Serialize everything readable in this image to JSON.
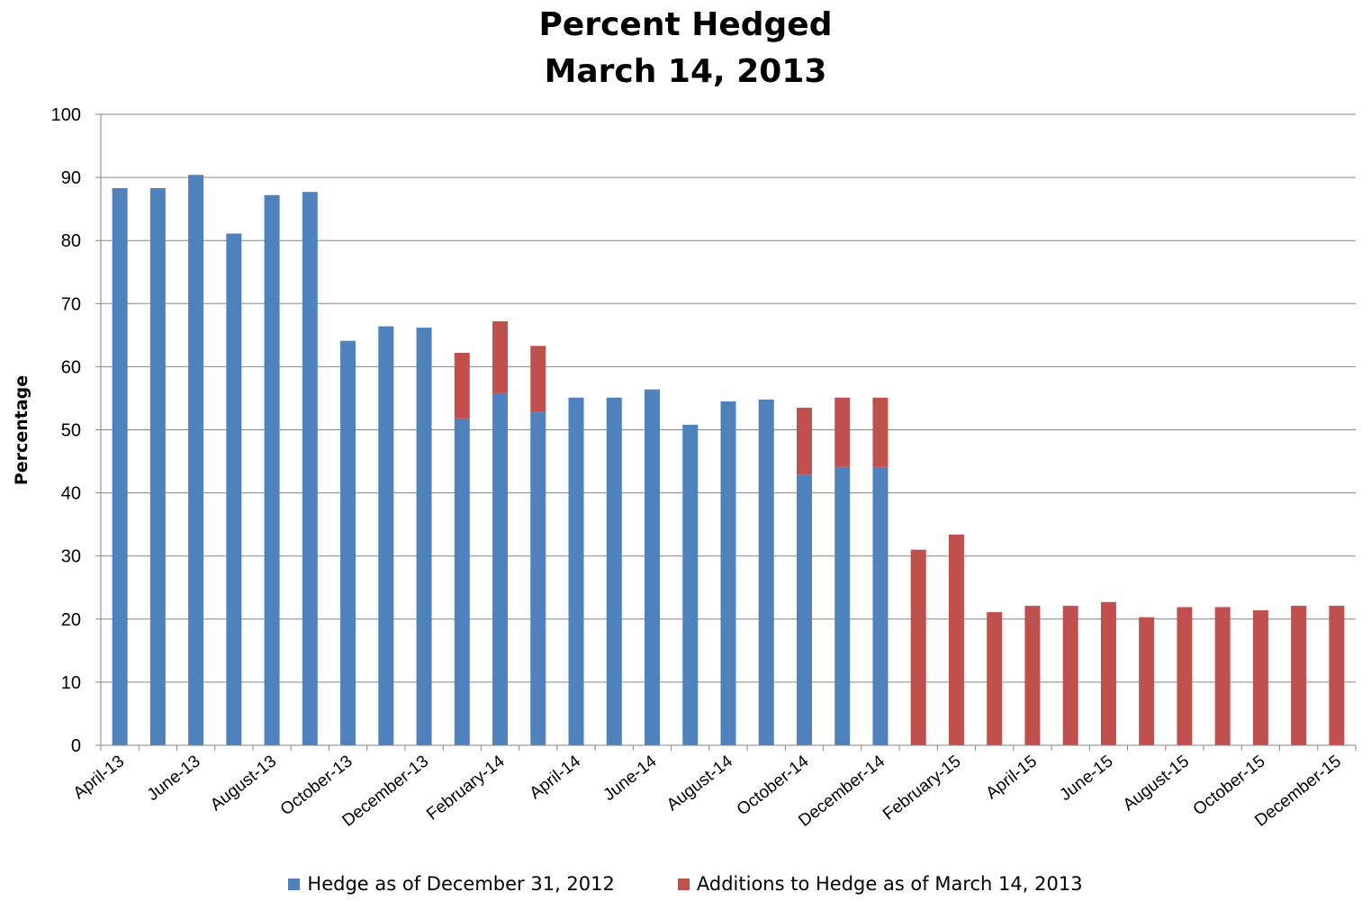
{
  "chart_data": {
    "type": "bar",
    "stacked": true,
    "title": "Percent Hedged",
    "subtitle": "March 14, 2013",
    "ylabel": "Percentage",
    "xlabel": "",
    "ylim": [
      0,
      100
    ],
    "yticks": [
      0,
      10,
      20,
      30,
      40,
      50,
      60,
      70,
      80,
      90,
      100
    ],
    "grid": true,
    "legend_position": "bottom",
    "categories": [
      "April-13",
      "May-13",
      "June-13",
      "July-13",
      "August-13",
      "September-13",
      "October-13",
      "November-13",
      "December-13",
      "January-14",
      "February-14",
      "March-14",
      "April-14",
      "May-14",
      "June-14",
      "July-14",
      "August-14",
      "September-14",
      "October-14",
      "November-14",
      "December-14",
      "January-15",
      "February-15",
      "March-15",
      "April-15",
      "May-15",
      "June-15",
      "July-15",
      "August-15",
      "September-15",
      "October-15",
      "November-15",
      "December-15"
    ],
    "xtick_labels": [
      "April-13",
      "June-13",
      "August-13",
      "October-13",
      "December-13",
      "February-14",
      "April-14",
      "June-14",
      "August-14",
      "October-14",
      "December-14",
      "February-15",
      "April-15",
      "June-15",
      "August-15",
      "October-15",
      "December-15"
    ],
    "series": [
      {
        "name": "Hedge as of December 31, 2012",
        "color": "#4F81BD",
        "values": [
          88.3,
          88.3,
          90.4,
          81.1,
          87.2,
          87.7,
          64.1,
          66.4,
          66.2,
          51.8,
          55.8,
          52.8,
          55.1,
          55.1,
          56.4,
          50.8,
          54.5,
          54.8,
          42.9,
          44.1,
          44.1,
          0,
          0,
          0,
          0,
          0,
          0,
          0,
          0,
          0,
          0,
          0,
          0
        ]
      },
      {
        "name": "Additions to Hedge as of March 14, 2013",
        "color": "#C0504D",
        "values": [
          0,
          0,
          0,
          0,
          0,
          0,
          0,
          0,
          0,
          10.4,
          11.4,
          10.5,
          0,
          0,
          0,
          0,
          0,
          0,
          10.6,
          11.0,
          11.0,
          31.0,
          33.4,
          21.1,
          22.1,
          22.1,
          22.7,
          20.3,
          21.9,
          21.9,
          21.4,
          22.1,
          22.1
        ]
      }
    ]
  }
}
